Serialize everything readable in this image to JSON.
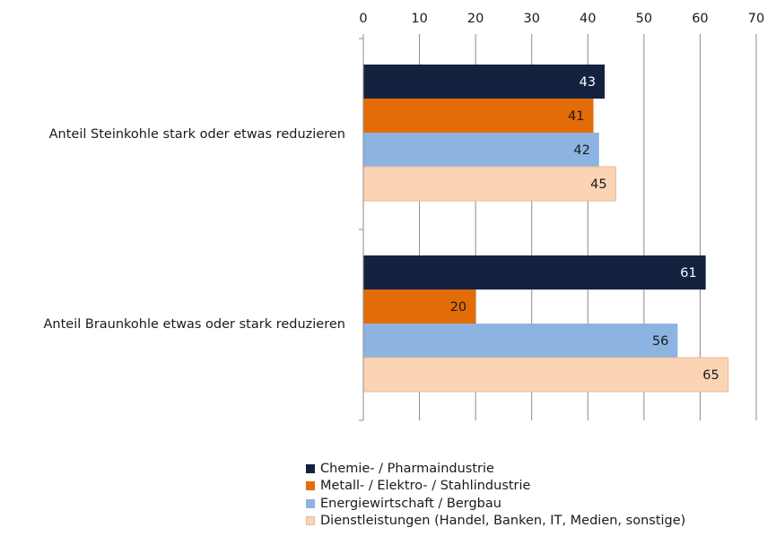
{
  "chart_data": {
    "type": "bar",
    "orientation": "horizontal",
    "categories": [
      "Anteil Steinkohle stark oder etwas reduzieren",
      "Anteil Braunkohle etwas oder stark reduzieren"
    ],
    "series": [
      {
        "name": "Chemie- / Pharmaindustrie",
        "color": "#13233f",
        "label_color": "#ffffff",
        "values": [
          43,
          61
        ]
      },
      {
        "name": "Metall- / Elektro- / Stahlindustrie",
        "color": "#e36c09",
        "label_color": "#1a1a1a",
        "values": [
          41,
          20
        ]
      },
      {
        "name": "Energiewirtschaft / Bergbau",
        "color": "#8db3e2",
        "label_color": "#1a1a1a",
        "values": [
          42,
          56
        ]
      },
      {
        "name": "Dienstleistungen (Handel, Banken, IT, Medien, sonstige)",
        "color": "#fbd4b4",
        "label_color": "#1a1a1a",
        "values": [
          45,
          65
        ]
      }
    ],
    "xlim": [
      0,
      70
    ],
    "xticks": [
      "0",
      "10",
      "20",
      "30",
      "40",
      "50",
      "60",
      "70"
    ],
    "x_axis_position": "top",
    "grid": true,
    "data_labels": true,
    "legend_position": "bottom"
  }
}
